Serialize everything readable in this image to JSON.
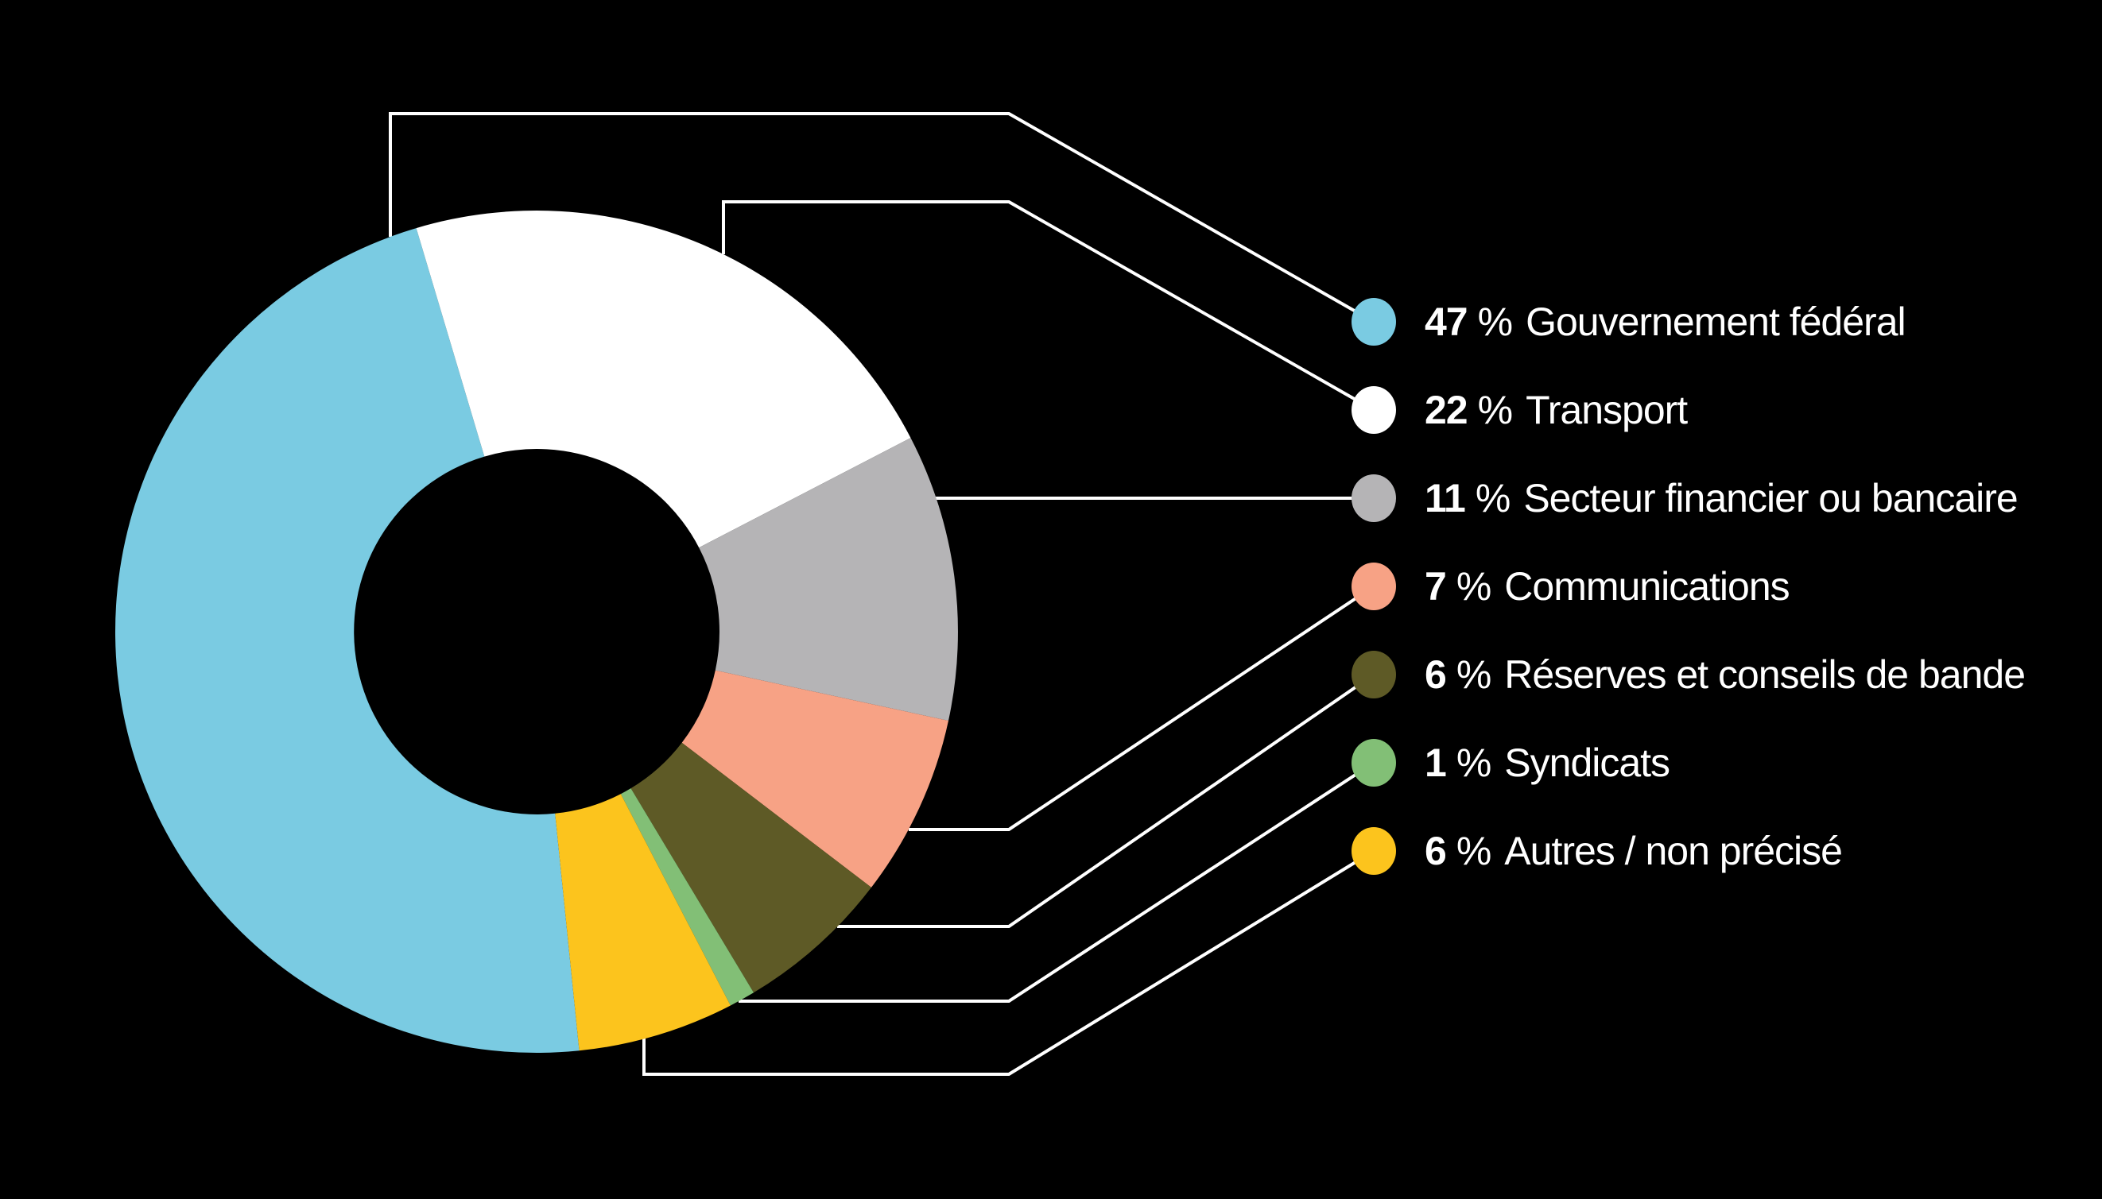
{
  "canvas": {
    "background_color": "#000000",
    "line_color": "#ffffff",
    "text_color": "#ffffff"
  },
  "chart_data": {
    "type": "pie",
    "variant": "donut",
    "title": "",
    "legend_position": "right",
    "direction": "clockwise",
    "rotation_deg": 174.2,
    "inner_radius_ratio": 0.434,
    "percent_sign": "%",
    "slices": [
      {
        "value": "47",
        "pct": "%",
        "label": "Gouvernement fédéral",
        "value_num": 47,
        "color": "#7acbe2"
      },
      {
        "value": "22",
        "pct": "%",
        "label": "Transport",
        "value_num": 22,
        "color": "#ffffff"
      },
      {
        "value": "11",
        "pct": "%",
        "label": "Secteur financier ou bancaire",
        "value_num": 11,
        "color": "#b5b4b6"
      },
      {
        "value": "7",
        "pct": "%",
        "label": "Communications",
        "value_num": 7,
        "color": "#f7a285"
      },
      {
        "value": "6",
        "pct": "%",
        "label": "Réserves et conseils de bande",
        "value_num": 6,
        "color": "#5e5a26"
      },
      {
        "value": "1",
        "pct": "%",
        "label": "Syndicats",
        "value_num": 1,
        "color": "#82bf76"
      },
      {
        "value": "6",
        "pct": "%",
        "label": "Autres / non précisé",
        "value_num": 6,
        "color": "#fcc41d"
      }
    ]
  }
}
